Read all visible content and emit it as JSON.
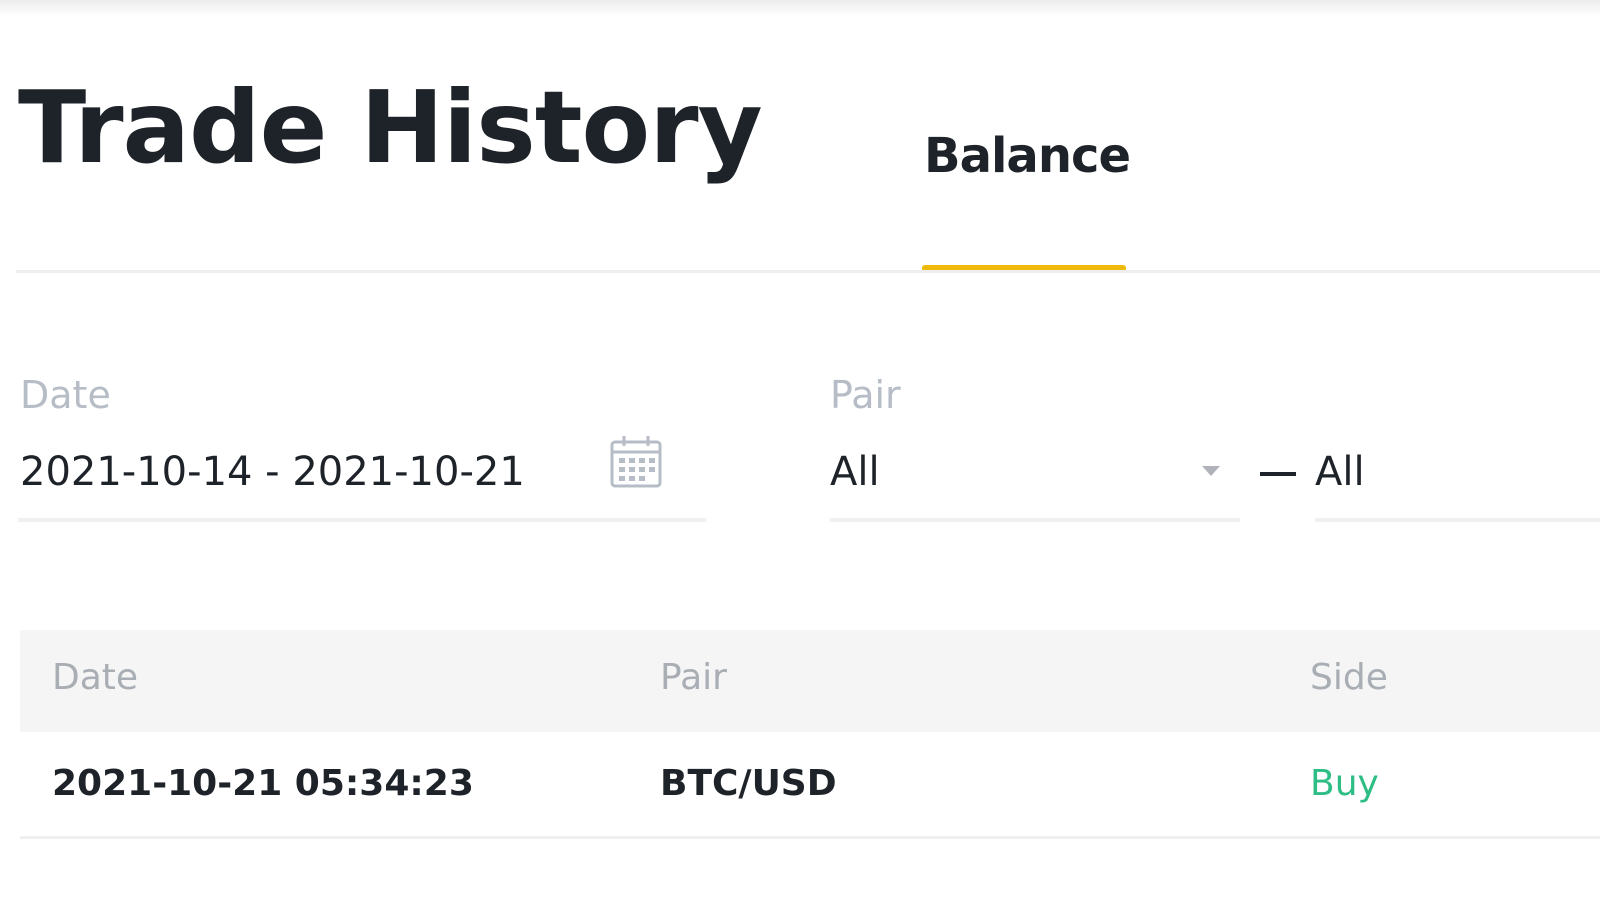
{
  "page": {
    "title": "Trade History"
  },
  "tabs": [
    {
      "label": "Balance",
      "active": true
    }
  ],
  "filters": {
    "date": {
      "label": "Date",
      "value": "2021-10-14 - 2021-10-21",
      "icon": "calendar-icon"
    },
    "pair": {
      "label": "Pair",
      "base_value": "All",
      "separator": "—",
      "quote_value": "All"
    }
  },
  "table": {
    "headers": [
      "Date",
      "Pair",
      "Side"
    ],
    "rows": [
      {
        "date": "2021-10-21 05:34:23",
        "pair": "BTC/USD",
        "side": "Buy"
      }
    ]
  },
  "colors": {
    "accent": "#f0b90b",
    "buy": "#2ebd85",
    "text": "#1e2329",
    "muted": "#b7bdc6"
  }
}
